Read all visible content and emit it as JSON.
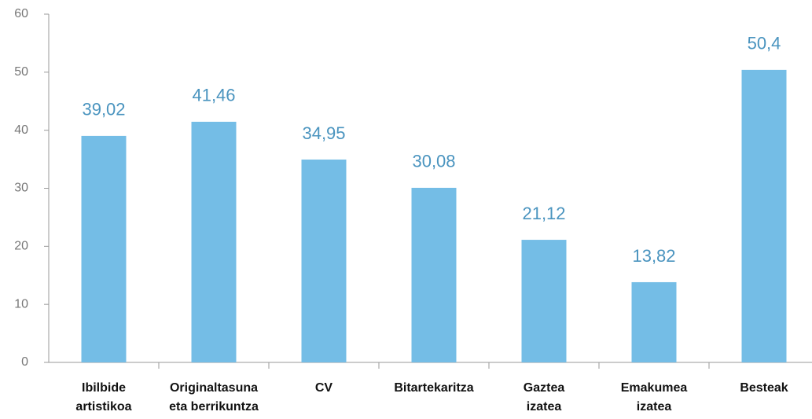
{
  "chart_data": {
    "type": "bar",
    "categories": [
      "Ibilbide\nartistikoa",
      "Originaltasuna\neta berrikuntza",
      "CV",
      "Bitartekaritza",
      "Gaztea\nizatea",
      "Emakumea\nizatea",
      "Besteak"
    ],
    "values": [
      39.02,
      41.46,
      34.95,
      30.08,
      21.12,
      13.82,
      50.4
    ],
    "value_labels": [
      "39,02",
      "41,46",
      "34,95",
      "30,08",
      "21,12",
      "13,82",
      "50,4"
    ],
    "color": "#74bde6",
    "ylim": [
      0,
      60
    ],
    "yticks": [
      0,
      10,
      20,
      30,
      40,
      50,
      60
    ],
    "grid": false
  }
}
